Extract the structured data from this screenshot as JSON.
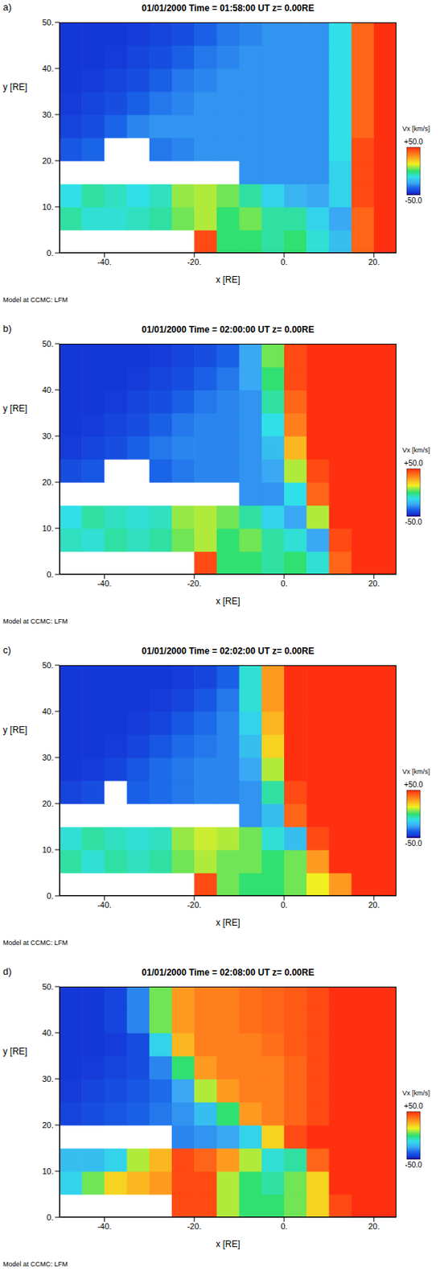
{
  "chart_data": [
    {
      "type": "heatmap",
      "panel_label": "a)",
      "title": "01/01/2000 Time = 01:58:00 UT z= 0.00RE",
      "x_label": "x [RE]",
      "y_label": "y [RE]",
      "annotation": "Model at CCMC: LFM",
      "xlim": [
        -50,
        25
      ],
      "ylim": [
        0,
        50
      ],
      "xticks": [
        {
          "value": -40,
          "label": "-40."
        },
        {
          "value": -20,
          "label": "-20."
        },
        {
          "value": 0,
          "label": "0."
        },
        {
          "value": 20,
          "label": "20."
        }
      ],
      "yticks": [
        {
          "value": 0,
          "label": "0."
        },
        {
          "value": 10,
          "label": "10."
        },
        {
          "value": 20,
          "label": "20."
        },
        {
          "value": 30,
          "label": "30."
        },
        {
          "value": 40,
          "label": "40."
        },
        {
          "value": 50,
          "label": "50."
        }
      ],
      "x_centers": [
        -47.5,
        -42.5,
        -37.5,
        -32.5,
        -27.5,
        -22.5,
        -17.5,
        -12.5,
        -7.5,
        -2.5,
        2.5,
        7.5,
        12.5,
        17.5,
        22.5
      ],
      "y_centers": [
        2.5,
        7.5,
        12.5,
        17.5,
        22.5,
        27.5,
        32.5,
        37.5,
        42.5,
        47.5
      ],
      "cells": [
        [
          null,
          null,
          null,
          null,
          null,
          null,
          45,
          0,
          0,
          -5,
          0,
          -10,
          -20,
          40,
          50
        ],
        [
          -5,
          -10,
          -10,
          -8,
          -5,
          5,
          10,
          0,
          5,
          -5,
          -5,
          -15,
          -25,
          40,
          50
        ],
        [
          -12,
          -5,
          -8,
          -12,
          -8,
          8,
          10,
          5,
          -5,
          -15,
          -22,
          -25,
          -15,
          45,
          50
        ],
        [
          null,
          null,
          null,
          null,
          null,
          null,
          null,
          null,
          -28,
          -28,
          -28,
          -28,
          -15,
          45,
          50
        ],
        [
          -38,
          -35,
          null,
          null,
          -32,
          -30,
          -28,
          -28,
          -28,
          -28,
          -28,
          -28,
          -12,
          45,
          50
        ],
        [
          -42,
          -40,
          -35,
          -30,
          -28,
          -28,
          -28,
          -28,
          -28,
          -28,
          -28,
          -28,
          -12,
          40,
          50
        ],
        [
          -44,
          -42,
          -40,
          -36,
          -32,
          -30,
          -28,
          -28,
          -28,
          -28,
          -28,
          -28,
          -12,
          40,
          50
        ],
        [
          -45,
          -44,
          -42,
          -40,
          -36,
          -32,
          -30,
          -28,
          -28,
          -28,
          -28,
          -28,
          -12,
          40,
          50
        ],
        [
          -45,
          -45,
          -44,
          -42,
          -40,
          -36,
          -32,
          -30,
          -28,
          -28,
          -28,
          -28,
          -12,
          40,
          50
        ],
        [
          -45,
          -45,
          -45,
          -44,
          -42,
          -40,
          -36,
          -32,
          -30,
          -28,
          -28,
          -28,
          -12,
          40,
          50
        ]
      ],
      "colorbar": {
        "label": "Vx [km/s]",
        "range": [
          -50,
          50
        ],
        "ticks": [
          {
            "value": 50,
            "label": "+50.0"
          },
          {
            "value": -50,
            "label": "-50.0"
          }
        ]
      }
    },
    {
      "type": "heatmap",
      "panel_label": "b)",
      "title": "01/01/2000 Time = 02:00:00 UT z= 0.00RE",
      "x_label": "x [RE]",
      "y_label": "y [RE]",
      "annotation": "Model at CCMC: LFM",
      "xlim": [
        -50,
        25
      ],
      "ylim": [
        0,
        50
      ],
      "xticks": [
        {
          "value": -40,
          "label": "-40."
        },
        {
          "value": -20,
          "label": "-20."
        },
        {
          "value": 0,
          "label": "0."
        },
        {
          "value": 20,
          "label": "20."
        }
      ],
      "yticks": [
        {
          "value": 0,
          "label": "0."
        },
        {
          "value": 10,
          "label": "10."
        },
        {
          "value": 20,
          "label": "20."
        },
        {
          "value": 30,
          "label": "30."
        },
        {
          "value": 40,
          "label": "40."
        },
        {
          "value": 50,
          "label": "50."
        }
      ],
      "x_centers": [
        -47.5,
        -42.5,
        -37.5,
        -32.5,
        -27.5,
        -22.5,
        -17.5,
        -12.5,
        -7.5,
        -2.5,
        2.5,
        7.5,
        12.5,
        17.5,
        22.5
      ],
      "y_centers": [
        2.5,
        7.5,
        12.5,
        17.5,
        22.5,
        27.5,
        32.5,
        37.5,
        42.5,
        47.5
      ],
      "cells": [
        [
          null,
          null,
          null,
          null,
          null,
          null,
          45,
          0,
          0,
          -5,
          0,
          -10,
          40,
          50,
          50
        ],
        [
          -8,
          -10,
          -5,
          -8,
          -5,
          5,
          10,
          0,
          5,
          -5,
          -10,
          -25,
          45,
          50,
          50
        ],
        [
          -12,
          -5,
          -8,
          -10,
          -8,
          8,
          10,
          5,
          -5,
          -15,
          -25,
          10,
          50,
          50,
          50
        ],
        [
          null,
          null,
          null,
          null,
          null,
          null,
          null,
          null,
          -28,
          -28,
          -12,
          40,
          50,
          50,
          50
        ],
        [
          -40,
          -38,
          null,
          null,
          -35,
          -32,
          -30,
          -30,
          -28,
          -25,
          10,
          45,
          50,
          50,
          50
        ],
        [
          -44,
          -42,
          -40,
          -36,
          -32,
          -30,
          -30,
          -30,
          -28,
          -20,
          25,
          50,
          50,
          50,
          50
        ],
        [
          -45,
          -44,
          -42,
          -40,
          -36,
          -32,
          -30,
          -30,
          -28,
          -12,
          35,
          50,
          50,
          50,
          50
        ],
        [
          -45,
          -45,
          -44,
          -42,
          -40,
          -36,
          -32,
          -30,
          -28,
          -5,
          40,
          50,
          50,
          50,
          50
        ],
        [
          -45,
          -45,
          -45,
          -44,
          -42,
          -40,
          -36,
          -32,
          -25,
          0,
          45,
          50,
          50,
          50,
          50
        ],
        [
          -45,
          -45,
          -45,
          -45,
          -44,
          -42,
          -40,
          -36,
          -25,
          5,
          45,
          50,
          50,
          50,
          50
        ]
      ],
      "colorbar": {
        "label": "Vx [km/s]",
        "range": [
          -50,
          50
        ],
        "ticks": [
          {
            "value": 50,
            "label": "+50.0"
          },
          {
            "value": -50,
            "label": "-50.0"
          }
        ]
      }
    },
    {
      "type": "heatmap",
      "panel_label": "c)",
      "title": "01/01/2000 Time = 02:02:00 UT z= 0.00RE",
      "x_label": "x [RE]",
      "y_label": "y [RE]",
      "annotation": "Model at CCMC: LFM",
      "xlim": [
        -50,
        25
      ],
      "ylim": [
        0,
        50
      ],
      "xticks": [
        {
          "value": -40,
          "label": "-40."
        },
        {
          "value": -20,
          "label": "-20."
        },
        {
          "value": 0,
          "label": "0."
        },
        {
          "value": 20,
          "label": "20."
        }
      ],
      "yticks": [
        {
          "value": 0,
          "label": "0."
        },
        {
          "value": 10,
          "label": "10."
        },
        {
          "value": 20,
          "label": "20."
        },
        {
          "value": 30,
          "label": "30."
        },
        {
          "value": 40,
          "label": "40."
        },
        {
          "value": 50,
          "label": "50."
        }
      ],
      "x_centers": [
        -47.5,
        -42.5,
        -37.5,
        -32.5,
        -27.5,
        -22.5,
        -17.5,
        -12.5,
        -7.5,
        -2.5,
        2.5,
        7.5,
        12.5,
        17.5,
        22.5
      ],
      "y_centers": [
        2.5,
        7.5,
        12.5,
        17.5,
        22.5,
        27.5,
        32.5,
        37.5,
        42.5,
        47.5
      ],
      "cells": [
        [
          null,
          null,
          null,
          null,
          null,
          null,
          45,
          5,
          0,
          0,
          5,
          15,
          30,
          50,
          50
        ],
        [
          -5,
          -10,
          -5,
          -8,
          -5,
          5,
          10,
          5,
          5,
          0,
          5,
          30,
          50,
          50,
          50
        ],
        [
          -10,
          -5,
          -8,
          -10,
          -8,
          8,
          12,
          10,
          5,
          -10,
          -20,
          45,
          50,
          50,
          50
        ],
        [
          null,
          null,
          null,
          null,
          null,
          null,
          null,
          null,
          -28,
          -20,
          40,
          50,
          50,
          50,
          50
        ],
        [
          -42,
          -40,
          null,
          -36,
          -34,
          -32,
          -30,
          -30,
          -28,
          -5,
          45,
          50,
          50,
          50,
          50
        ],
        [
          -45,
          -44,
          -42,
          -38,
          -34,
          -32,
          -30,
          -30,
          -25,
          10,
          50,
          50,
          50,
          50,
          50
        ],
        [
          -45,
          -45,
          -44,
          -42,
          -38,
          -34,
          -32,
          -30,
          -20,
          20,
          50,
          50,
          50,
          50,
          50
        ],
        [
          -45,
          -45,
          -45,
          -44,
          -42,
          -38,
          -34,
          -30,
          -15,
          25,
          50,
          50,
          50,
          50,
          50
        ],
        [
          -45,
          -45,
          -45,
          -45,
          -44,
          -42,
          -38,
          -32,
          -10,
          30,
          50,
          50,
          50,
          50,
          50
        ],
        [
          -45,
          -45,
          -45,
          -45,
          -45,
          -44,
          -42,
          -36,
          -10,
          30,
          50,
          50,
          50,
          50,
          50
        ]
      ],
      "colorbar": {
        "label": "Vx [km/s]",
        "range": [
          -50,
          50
        ],
        "ticks": [
          {
            "value": 50,
            "label": "+50.0"
          },
          {
            "value": -50,
            "label": "-50.0"
          }
        ]
      }
    },
    {
      "type": "heatmap",
      "panel_label": "d)",
      "title": "01/01/2000 Time = 02:08:00 UT z= 0.00RE",
      "x_label": "x [RE]",
      "y_label": "y [RE]",
      "annotation": "Model at CCMC: LFM",
      "xlim": [
        -50,
        25
      ],
      "ylim": [
        0,
        50
      ],
      "xticks": [
        {
          "value": -40,
          "label": "-40."
        },
        {
          "value": -20,
          "label": "-20."
        },
        {
          "value": 0,
          "label": "0."
        },
        {
          "value": 20,
          "label": "20."
        }
      ],
      "yticks": [
        {
          "value": 0,
          "label": "0."
        },
        {
          "value": 10,
          "label": "10."
        },
        {
          "value": 20,
          "label": "20."
        },
        {
          "value": 30,
          "label": "30."
        },
        {
          "value": 40,
          "label": "40."
        },
        {
          "value": 50,
          "label": "50."
        }
      ],
      "x_centers": [
        -47.5,
        -42.5,
        -37.5,
        -32.5,
        -27.5,
        -22.5,
        -17.5,
        -12.5,
        -7.5,
        -2.5,
        2.5,
        7.5,
        12.5,
        17.5,
        22.5
      ],
      "y_centers": [
        2.5,
        7.5,
        12.5,
        17.5,
        22.5,
        27.5,
        32.5,
        37.5,
        42.5,
        47.5
      ],
      "cells": [
        [
          null,
          null,
          null,
          null,
          null,
          45,
          45,
          10,
          0,
          0,
          5,
          20,
          45,
          50,
          50
        ],
        [
          -15,
          5,
          20,
          25,
          30,
          45,
          45,
          10,
          0,
          -5,
          5,
          20,
          50,
          50,
          50
        ],
        [
          -20,
          -20,
          -15,
          10,
          25,
          45,
          40,
          30,
          10,
          -10,
          -5,
          40,
          50,
          50,
          50
        ],
        [
          null,
          null,
          null,
          null,
          null,
          -30,
          -28,
          -25,
          -15,
          20,
          45,
          50,
          50,
          50,
          50
        ],
        [
          -42,
          -40,
          -38,
          -36,
          -32,
          -28,
          -20,
          0,
          30,
          35,
          40,
          45,
          50,
          50,
          50
        ],
        [
          -44,
          -42,
          -40,
          -38,
          -34,
          -25,
          10,
          30,
          35,
          35,
          40,
          45,
          50,
          50,
          50
        ],
        [
          -45,
          -44,
          -42,
          -40,
          -30,
          0,
          30,
          35,
          35,
          35,
          40,
          45,
          50,
          50,
          50
        ],
        [
          -45,
          -45,
          -44,
          -40,
          -15,
          25,
          35,
          35,
          35,
          38,
          42,
          45,
          50,
          50,
          50
        ],
        [
          -45,
          -45,
          -42,
          -30,
          5,
          30,
          35,
          35,
          38,
          40,
          42,
          45,
          50,
          50,
          50
        ],
        [
          -45,
          -45,
          -42,
          -30,
          5,
          30,
          35,
          35,
          38,
          40,
          42,
          45,
          50,
          50,
          50
        ]
      ],
      "colorbar": {
        "label": "Vx [km/s]",
        "range": [
          -50,
          50
        ],
        "ticks": [
          {
            "value": 50,
            "label": "+50.0"
          },
          {
            "value": -50,
            "label": "-50.0"
          }
        ]
      }
    }
  ]
}
